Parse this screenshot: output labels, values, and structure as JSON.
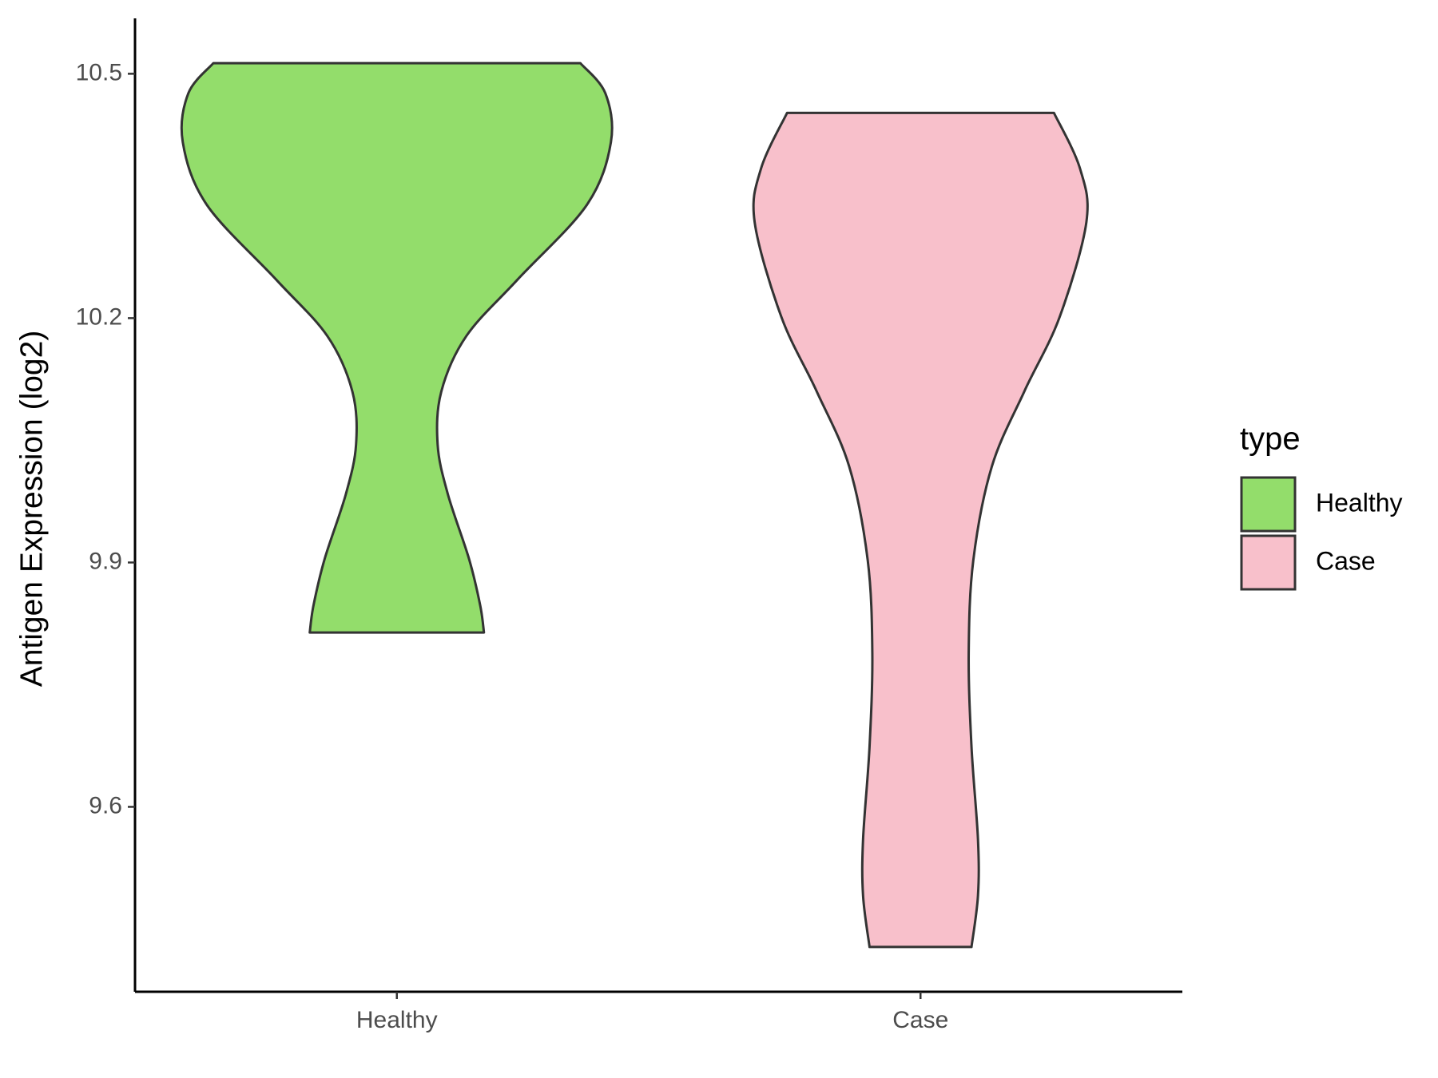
{
  "chart_data": {
    "type": "violin",
    "y_label": "Antigen Expression (log2)",
    "categories": [
      "Healthy",
      "Case"
    ],
    "legend_title": "type",
    "legend_position": "right",
    "ylim": [
      9.373,
      10.568
    ],
    "yticks": [
      9.6,
      9.9,
      10.2,
      10.5
    ],
    "series": [
      {
        "name": "Healthy",
        "color": "#93dd6b",
        "y": [
          10.513,
          10.476,
          10.416,
          10.339,
          10.247,
          10.178,
          10.11,
          10.045,
          9.984,
          9.904,
          9.847,
          9.814
        ],
        "density": [
          198,
          225,
          231,
          205,
          130,
          75,
          48,
          44,
          55,
          78,
          90,
          94
        ]
      },
      {
        "name": "Case",
        "color": "#f8c0cb",
        "y": [
          10.452,
          10.384,
          10.318,
          10.201,
          10.11,
          10.018,
          9.903,
          9.789,
          9.674,
          9.56,
          9.491,
          9.428
        ],
        "density": [
          144,
          172,
          179,
          150,
          112,
          77,
          57,
          52,
          55,
          62,
          62,
          55
        ]
      }
    ]
  }
}
